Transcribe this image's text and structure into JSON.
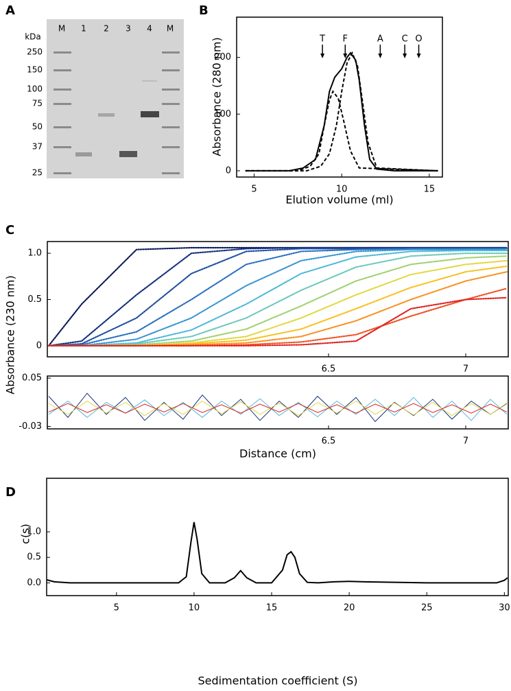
{
  "panel_labels": [
    "A",
    "B",
    "C",
    "D"
  ],
  "gel": {
    "unit": "kDa",
    "lanes": [
      "M",
      "1",
      "2",
      "3",
      "4",
      "M"
    ],
    "markers": [
      "250",
      "150",
      "100",
      "75",
      "50",
      "37",
      "25"
    ]
  },
  "chart_data": [
    {
      "type": "line",
      "xlabel": "Elution volume (ml)",
      "ylabel": "Absorbance  (280 nm)",
      "xlim": [
        4,
        15.75
      ],
      "ylim": [
        -11,
        271
      ],
      "xticks": [
        5,
        10,
        15
      ],
      "yticks": [
        0,
        100,
        200
      ],
      "annotations": [
        {
          "text": "T",
          "x": 8.9
        },
        {
          "text": "F",
          "x": 10.2
        },
        {
          "text": "A",
          "x": 12.2
        },
        {
          "text": "C",
          "x": 13.6
        },
        {
          "text": "O",
          "x": 14.4
        }
      ],
      "series": [
        {
          "color": "#000000",
          "style": "solid",
          "x": [
            4.5,
            7,
            7.8,
            8.5,
            9,
            9.3,
            9.6,
            10,
            10.3,
            10.5,
            10.8,
            11,
            11.3,
            11.6,
            12,
            13,
            15.5
          ],
          "values": [
            0,
            0,
            5,
            20,
            80,
            140,
            165,
            180,
            200,
            208,
            195,
            160,
            80,
            20,
            3,
            0,
            0
          ]
        },
        {
          "color": "#000000",
          "style": "dashed",
          "x": [
            4.5,
            7.5,
            8.2,
            8.7,
            9,
            9.3,
            9.5,
            9.8,
            10.1,
            10.5,
            11,
            15.5
          ],
          "values": [
            0,
            0,
            8,
            30,
            80,
            125,
            140,
            128,
            90,
            35,
            5,
            0
          ]
        },
        {
          "color": "#000000",
          "style": "dashed",
          "x": [
            4.5,
            8,
            8.8,
            9.3,
            9.7,
            10,
            10.3,
            10.6,
            10.9,
            11.2,
            11.5,
            12,
            15.5
          ],
          "values": [
            0,
            0,
            8,
            30,
            80,
            140,
            190,
            208,
            185,
            120,
            50,
            5,
            0
          ]
        }
      ]
    },
    {
      "type": "line",
      "ylabel": "Absorbance (230 nm)",
      "xlim": [
        5.475,
        7.155
      ],
      "ylim": [
        -0.12,
        1.127
      ],
      "xticks": [
        6.5,
        7
      ],
      "yticks": [
        0,
        0.5,
        {
          "value": 1,
          "label": "1.0"
        }
      ],
      "x": [
        5.48,
        5.6,
        5.8,
        6.0,
        6.2,
        6.4,
        6.6,
        6.8,
        7.0,
        7.15
      ],
      "series": [
        {
          "color": "#0a1a5c",
          "style": "dotted",
          "values": [
            0,
            0.45,
            1.04,
            1.06,
            1.06,
            1.06,
            1.06,
            1.06,
            1.06,
            1.06
          ]
        },
        {
          "color": "#14307f",
          "style": "dotted",
          "values": [
            0,
            0.05,
            0.55,
            1.0,
            1.05,
            1.06,
            1.06,
            1.06,
            1.06,
            1.06
          ]
        },
        {
          "color": "#1f4fa0",
          "style": "dotted",
          "values": [
            0,
            0.02,
            0.3,
            0.78,
            1.02,
            1.05,
            1.05,
            1.05,
            1.05,
            1.05
          ]
        },
        {
          "color": "#2a6fbf",
          "style": "dotted",
          "values": [
            0,
            0.01,
            0.15,
            0.5,
            0.88,
            1.02,
            1.04,
            1.05,
            1.05,
            1.05
          ]
        },
        {
          "color": "#3a94d0",
          "style": "dotted",
          "values": [
            0,
            0,
            0.07,
            0.3,
            0.65,
            0.92,
            1.02,
            1.04,
            1.04,
            1.04
          ]
        },
        {
          "color": "#4fb8d8",
          "style": "dotted",
          "values": [
            0,
            0,
            0.03,
            0.17,
            0.45,
            0.78,
            0.96,
            1.02,
            1.03,
            1.03
          ]
        },
        {
          "color": "#6cc8b8",
          "style": "dotted",
          "values": [
            0,
            0,
            0.02,
            0.1,
            0.3,
            0.6,
            0.85,
            0.97,
            1.0,
            1.0
          ]
        },
        {
          "color": "#a0d070",
          "style": "dotted",
          "values": [
            0,
            0,
            0.01,
            0.05,
            0.18,
            0.43,
            0.7,
            0.88,
            0.95,
            0.97
          ]
        },
        {
          "color": "#e0d840",
          "style": "dotted",
          "values": [
            0,
            0,
            0,
            0.03,
            0.1,
            0.3,
            0.55,
            0.77,
            0.88,
            0.92
          ]
        },
        {
          "color": "#f8c020",
          "style": "dotted",
          "values": [
            0,
            0,
            0,
            0.02,
            0.06,
            0.18,
            0.4,
            0.63,
            0.8,
            0.86
          ]
        },
        {
          "color": "#f89020",
          "style": "dotted",
          "values": [
            0,
            0,
            0,
            0.01,
            0.03,
            0.1,
            0.27,
            0.5,
            0.7,
            0.8
          ]
        },
        {
          "color": "#f05020",
          "style": "dotted",
          "values": [
            0,
            0,
            0,
            0,
            0.01,
            0.04,
            0.12,
            0.32,
            0.5,
            0.62
          ]
        },
        {
          "color": "#e02020",
          "style": "dotted",
          "values": [
            0,
            0,
            0,
            0,
            0,
            0.01,
            0.05,
            0.4,
            0.5,
            0.52
          ]
        }
      ]
    },
    {
      "type": "line",
      "xlabel": "Distance (cm)",
      "xlim": [
        5.475,
        7.155
      ],
      "ylim": [
        -0.034,
        0.0535
      ],
      "xticks": [
        6.5,
        7
      ],
      "yticks": [
        0.05,
        -0.03
      ],
      "x": [
        5.48,
        5.55,
        5.62,
        5.69,
        5.76,
        5.83,
        5.9,
        5.97,
        6.04,
        6.11,
        6.18,
        6.25,
        6.32,
        6.39,
        6.46,
        6.53,
        6.6,
        6.67,
        6.74,
        6.81,
        6.88,
        6.95,
        7.02,
        7.09,
        7.15
      ],
      "series": [
        {
          "color": "#14307f",
          "style": "solid",
          "values": [
            0.02,
            -0.015,
            0.025,
            -0.01,
            0.018,
            -0.02,
            0.01,
            -0.018,
            0.022,
            -0.012,
            0.015,
            -0.02,
            0.012,
            -0.015,
            0.02,
            -0.01,
            0.018,
            -0.022,
            0.01,
            -0.012,
            0.015,
            -0.018,
            0.012,
            -0.01,
            0.008
          ]
        },
        {
          "color": "#4fb8d8",
          "style": "solid",
          "values": [
            -0.01,
            0.012,
            -0.015,
            0.01,
            -0.008,
            0.014,
            -0.012,
            0.01,
            -0.015,
            0.012,
            -0.01,
            0.016,
            -0.012,
            0.01,
            -0.014,
            0.012,
            -0.01,
            0.015,
            -0.012,
            0.018,
            -0.015,
            0.012,
            -0.02,
            0.015,
            -0.01
          ]
        },
        {
          "color": "#e0d840",
          "style": "solid",
          "values": [
            0.008,
            -0.01,
            0.012,
            -0.008,
            0.01,
            -0.012,
            0.008,
            -0.01,
            0.012,
            -0.009,
            0.011,
            -0.01,
            0.009,
            -0.012,
            0.01,
            -0.008,
            0.012,
            -0.01,
            0.009,
            -0.011,
            0.01,
            -0.012,
            0.008,
            -0.01,
            0.009
          ]
        },
        {
          "color": "#e02020",
          "style": "solid",
          "values": [
            -0.006,
            0.008,
            -0.007,
            0.006,
            -0.008,
            0.007,
            -0.006,
            0.008,
            -0.007,
            0.006,
            -0.008,
            0.007,
            -0.006,
            0.008,
            -0.007,
            0.006,
            -0.008,
            0.007,
            -0.006,
            0.008,
            -0.007,
            0.006,
            -0.008,
            0.007,
            -0.006
          ]
        }
      ]
    },
    {
      "type": "line",
      "xlabel": "Sedimentation coefficient (S)",
      "ylabel": "c(s)",
      "xlim": [
        0.5,
        30.25
      ],
      "ylim": [
        -0.25,
        2.05
      ],
      "xticks": [
        5,
        10,
        15,
        20,
        25,
        30
      ],
      "yticks": [
        {
          "value": 0,
          "label": "0.0"
        },
        0.5,
        {
          "value": 1,
          "label": "1.0"
        }
      ],
      "series": [
        {
          "color": "#000000",
          "style": "solid",
          "x": [
            0.5,
            1,
            2,
            5,
            9,
            9.5,
            9.8,
            10,
            10.2,
            10.5,
            11,
            12,
            12.6,
            13,
            13.4,
            14,
            15,
            15.7,
            16,
            16.25,
            16.5,
            16.8,
            17.3,
            18,
            19,
            20,
            21,
            25,
            29.5,
            30,
            30.2
          ],
          "values": [
            0.06,
            0.02,
            0,
            0,
            0,
            0.12,
            0.8,
            1.19,
            0.85,
            0.18,
            0,
            0,
            0.1,
            0.24,
            0.1,
            0,
            0,
            0.25,
            0.55,
            0.61,
            0.5,
            0.18,
            0.01,
            0,
            0.02,
            0.03,
            0.02,
            0,
            0,
            0.05,
            0.1
          ]
        }
      ]
    }
  ]
}
